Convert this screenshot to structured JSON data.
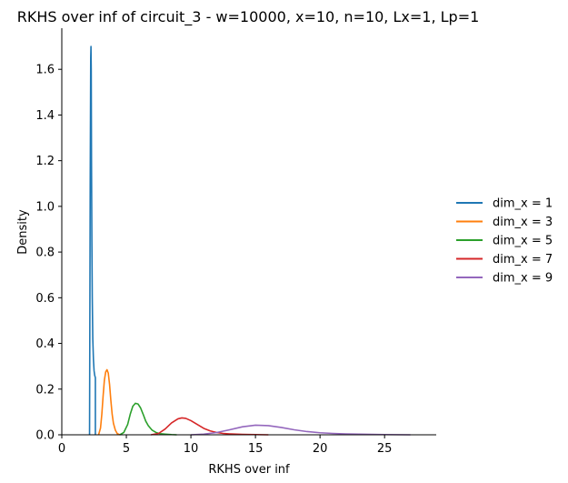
{
  "chart_data": {
    "type": "line",
    "title": "RKHS over inf of circuit_3 - w=10000, x=10, n=10, Lx=1, Lp=1",
    "xlabel": "RKHS over inf",
    "ylabel": "Density",
    "xlim": [
      0,
      29
    ],
    "ylim": [
      0,
      1.78
    ],
    "xticks": [
      0,
      5,
      10,
      15,
      20,
      25
    ],
    "yticks": [
      0.0,
      0.2,
      0.4,
      0.6,
      0.8,
      1.0,
      1.2,
      1.4,
      1.6
    ],
    "xtick_labels": [
      "0",
      "5",
      "10",
      "15",
      "20",
      "25"
    ],
    "ytick_labels": [
      "0.0",
      "0.2",
      "0.4",
      "0.6",
      "0.8",
      "1.0",
      "1.2",
      "1.4",
      "1.6"
    ],
    "legend_position": "right",
    "series": [
      {
        "name": "dim_x = 1",
        "color": "#1f77b4",
        "x": [
          2.15,
          2.2,
          2.24,
          2.26,
          2.28,
          2.3,
          2.33,
          2.36,
          2.4,
          2.45,
          2.5,
          2.55,
          2.6,
          2.6
        ],
        "y": [
          0.0,
          1.1,
          1.65,
          1.7,
          1.6,
          1.2,
          0.85,
          0.6,
          0.42,
          0.33,
          0.28,
          0.26,
          0.25,
          0.0
        ]
      },
      {
        "name": "dim_x = 3",
        "color": "#ff7f0e",
        "x": [
          2.85,
          3.0,
          3.1,
          3.2,
          3.3,
          3.4,
          3.5,
          3.6,
          3.7,
          3.8,
          3.9,
          4.0,
          4.15,
          4.3,
          4.5
        ],
        "y": [
          0.0,
          0.03,
          0.09,
          0.17,
          0.24,
          0.275,
          0.285,
          0.27,
          0.22,
          0.15,
          0.09,
          0.05,
          0.02,
          0.005,
          0.0
        ]
      },
      {
        "name": "dim_x = 5",
        "color": "#2ca02c",
        "x": [
          4.5,
          4.8,
          5.1,
          5.3,
          5.5,
          5.7,
          5.9,
          6.1,
          6.3,
          6.5,
          6.7,
          7.0,
          7.3,
          7.6,
          8.0,
          8.5,
          8.9
        ],
        "y": [
          0.0,
          0.01,
          0.045,
          0.09,
          0.125,
          0.138,
          0.135,
          0.118,
          0.09,
          0.06,
          0.04,
          0.02,
          0.01,
          0.005,
          0.003,
          0.001,
          0.0
        ]
      },
      {
        "name": "dim_x = 7",
        "color": "#d62728",
        "x": [
          6.9,
          7.5,
          8.0,
          8.5,
          9.0,
          9.3,
          9.6,
          10.0,
          10.5,
          11.0,
          11.5,
          12.0,
          12.5,
          13.0,
          14.0,
          15.0,
          16.0
        ],
        "y": [
          0.0,
          0.006,
          0.025,
          0.052,
          0.07,
          0.074,
          0.072,
          0.062,
          0.045,
          0.028,
          0.017,
          0.01,
          0.006,
          0.004,
          0.002,
          0.001,
          0.0
        ]
      },
      {
        "name": "dim_x = 9",
        "color": "#9467bd",
        "x": [
          10.0,
          11.0,
          12.0,
          13.0,
          14.0,
          15.0,
          16.0,
          17.0,
          18.0,
          19.0,
          20.0,
          21.0,
          22.0,
          23.0,
          24.0,
          25.0,
          26.0,
          27.0
        ],
        "y": [
          0.0,
          0.003,
          0.01,
          0.022,
          0.035,
          0.042,
          0.04,
          0.032,
          0.022,
          0.014,
          0.009,
          0.006,
          0.004,
          0.003,
          0.002,
          0.001,
          0.0005,
          0.0
        ]
      }
    ]
  }
}
